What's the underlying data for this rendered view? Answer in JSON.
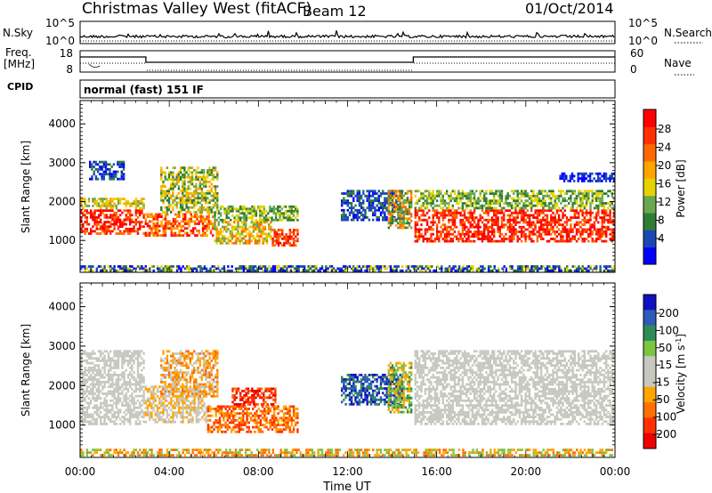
{
  "header": {
    "station": "Christmas Valley West (fitACF)",
    "beam": "Beam 12",
    "date": "01/Oct/2014"
  },
  "strip_nsky": {
    "label": "N.Sky",
    "left_ticks": [
      "10^5",
      "10^0"
    ],
    "right_ticks": [
      "10^5",
      "10^0"
    ],
    "right_label": "N.Search"
  },
  "strip_freq": {
    "label_line1": "Freq.",
    "label_line2": "[MHz]",
    "left_ticks": [
      "18",
      "8"
    ],
    "right_ticks": [
      "60",
      "0"
    ],
    "right_label": "Nave",
    "cpid_label": "CPID",
    "cpid_text": "normal (fast) 151 IF"
  },
  "colors": {
    "power_scale": [
      "#0000ff",
      "#1a47b5",
      "#2e7d32",
      "#6aa84f",
      "#e6d200",
      "#ffa500",
      "#ff6a00",
      "#ff3000",
      "#ff0000"
    ],
    "velocity_scale": [
      "#1010c0",
      "#2e5ab8",
      "#2e8b57",
      "#7cc444",
      "#c8c8c0",
      "#c8c8c0",
      "#ffa500",
      "#ff7000",
      "#ff3000",
      "#ee0000"
    ]
  },
  "chart_data": [
    {
      "type": "heatmap",
      "panel": "power",
      "ylabel": "Slant Range [km]",
      "xlabel": "",
      "ylim": [
        180,
        4600
      ],
      "yticks": [
        1000,
        2000,
        3000,
        4000
      ],
      "xticks": [
        "00:00",
        "04:00",
        "08:00",
        "12:00",
        "16:00",
        "20:00",
        "00:00"
      ],
      "colorbar": {
        "label": "Power [dB]",
        "ticks": [
          "28",
          "24",
          "20",
          "16",
          "12",
          "8",
          "4"
        ],
        "range": [
          0,
          30
        ]
      }
    },
    {
      "type": "heatmap",
      "panel": "velocity",
      "ylabel": "Slant Range [km]",
      "xlabel": "Time UT",
      "ylim": [
        180,
        4600
      ],
      "yticks": [
        1000,
        2000,
        3000,
        4000
      ],
      "xticks": [
        "00:00",
        "04:00",
        "08:00",
        "12:00",
        "16:00",
        "20:00",
        "00:00"
      ],
      "colorbar": {
        "label": "Velocity [m s^-1]",
        "ticks": [
          "200",
          "100",
          "50",
          "15",
          "-15",
          "-50",
          "-100",
          "-200"
        ],
        "range": [
          -250,
          250
        ]
      }
    }
  ]
}
